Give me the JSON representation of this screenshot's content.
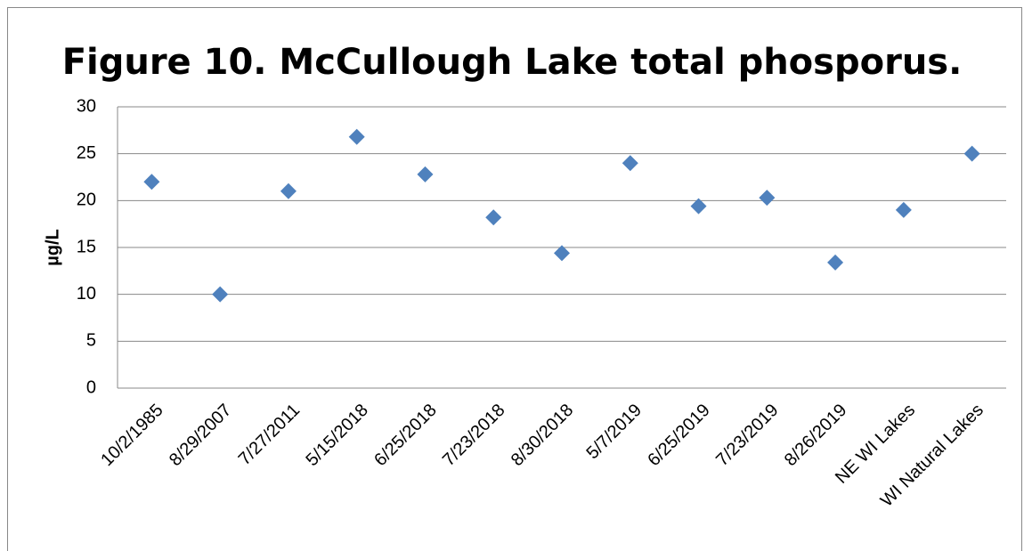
{
  "chart_data": {
    "type": "scatter",
    "title": "Figure 10. McCullough Lake total phosporus.",
    "y_label": "µg/L",
    "categories": [
      "10/2/1985",
      "8/29/2007",
      "7/27/2011",
      "5/15/2018",
      "6/25/2018",
      "7/23/2018",
      "8/30/2018",
      "5/7/2019",
      "6/25/2019",
      "7/23/2019",
      "8/26/2019",
      "NE WI Lakes",
      "WI Natural Lakes"
    ],
    "values": [
      22,
      10,
      21,
      26.8,
      22.8,
      18.2,
      14.4,
      24,
      19.4,
      20.3,
      13.4,
      19,
      25
    ],
    "color": "#4f81bd",
    "ylim": [
      0,
      30
    ],
    "yticks": [
      0,
      5,
      10,
      15,
      20,
      25,
      30
    ],
    "grid": true
  }
}
